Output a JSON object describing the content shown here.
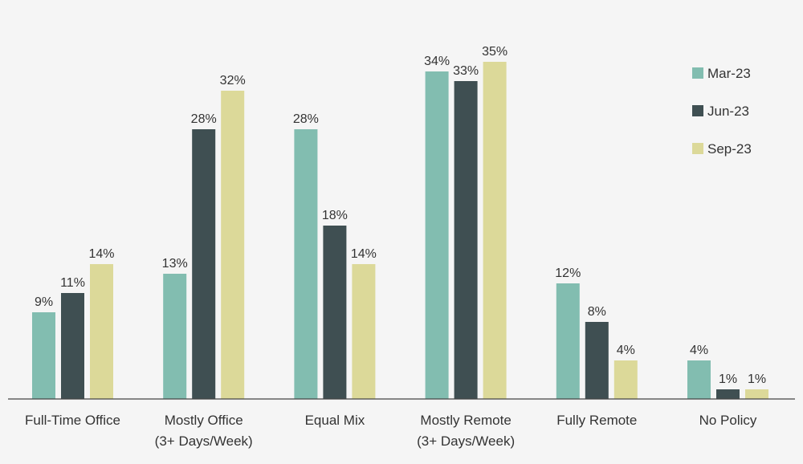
{
  "chart_data": {
    "type": "bar",
    "title": "",
    "xlabel": "",
    "ylabel": "",
    "ylim": [
      0,
      35
    ],
    "grid": false,
    "legend_position": "top-right",
    "value_suffix": "%",
    "categories": [
      [
        "Full-Time Office"
      ],
      [
        "Mostly Office",
        "(3+ Days/Week)"
      ],
      [
        "Equal Mix"
      ],
      [
        "Mostly Remote",
        "(3+ Days/Week)"
      ],
      [
        "Fully Remote"
      ],
      [
        "No Policy"
      ]
    ],
    "series": [
      {
        "name": "Mar-23",
        "color": "#82bdb0",
        "values": [
          9,
          13,
          28,
          34,
          12,
          4
        ]
      },
      {
        "name": "Jun-23",
        "color": "#3f4f52",
        "values": [
          11,
          28,
          18,
          33,
          8,
          1
        ]
      },
      {
        "name": "Sep-23",
        "color": "#dcd999",
        "values": [
          14,
          32,
          14,
          35,
          4,
          1
        ]
      }
    ]
  }
}
